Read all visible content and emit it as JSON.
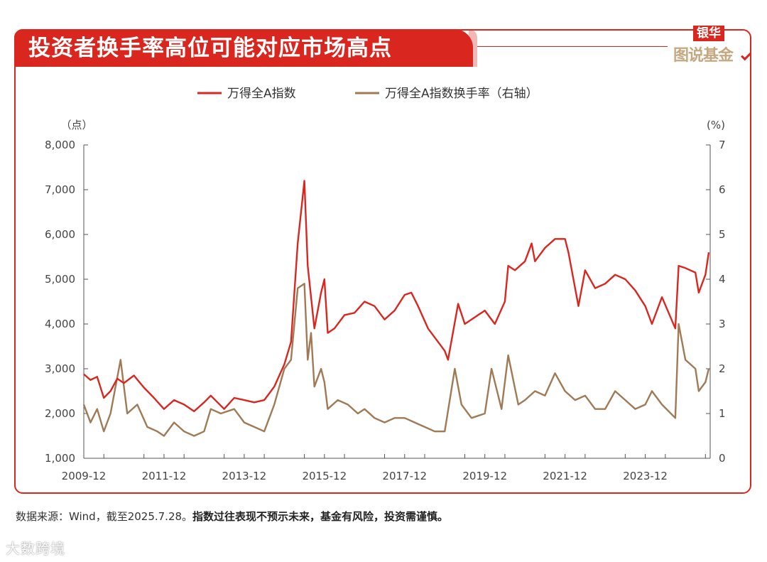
{
  "header": {
    "title": "投资者换手率高位可能对应市场高点",
    "brand_top": "银华",
    "brand_main": "图说基金"
  },
  "footer": {
    "source": "数据来源：Wind，截至2025.7.28。",
    "disclaimer": "指数过往表现不预示未来，基金有风险，投资需谨慎。"
  },
  "watermark": "大数跨境",
  "colors": {
    "accent": "#d9271f",
    "series_index": "#d9271f",
    "series_turnover": "#a07a55",
    "axis": "#555555"
  },
  "chart_data": {
    "type": "line",
    "legend_position": "top-center",
    "grid": false,
    "y_left_unit": "（点）",
    "y_right_unit": "(%)",
    "ylim_left": [
      1000,
      8000
    ],
    "ylim_right": [
      0,
      7
    ],
    "y_left_ticks": [
      "1,000",
      "2,000",
      "3,000",
      "4,000",
      "5,000",
      "6,000",
      "7,000",
      "8,000"
    ],
    "y_right_ticks": [
      "0",
      "1",
      "2",
      "3",
      "4",
      "5",
      "6",
      "7"
    ],
    "x_tick_labels": [
      "2009-12",
      "2011-12",
      "2013-12",
      "2015-12",
      "2017-12",
      "2019-12",
      "2021-12",
      "2023-12"
    ],
    "x_range": [
      "2009-12",
      "2025-07"
    ],
    "series": [
      {
        "name": "万得全A指数",
        "axis": "left",
        "points": [
          [
            "2009-12",
            2880
          ],
          [
            "2010-02",
            2750
          ],
          [
            "2010-04",
            2820
          ],
          [
            "2010-06",
            2350
          ],
          [
            "2010-08",
            2500
          ],
          [
            "2010-10",
            2780
          ],
          [
            "2010-12",
            2680
          ],
          [
            "2011-03",
            2850
          ],
          [
            "2011-06",
            2580
          ],
          [
            "2011-09",
            2350
          ],
          [
            "2011-12",
            2100
          ],
          [
            "2012-03",
            2300
          ],
          [
            "2012-06",
            2200
          ],
          [
            "2012-09",
            2050
          ],
          [
            "2012-12",
            2250
          ],
          [
            "2013-02",
            2400
          ],
          [
            "2013-06",
            2100
          ],
          [
            "2013-09",
            2350
          ],
          [
            "2013-12",
            2300
          ],
          [
            "2014-03",
            2250
          ],
          [
            "2014-06",
            2300
          ],
          [
            "2014-09",
            2600
          ],
          [
            "2014-12",
            3100
          ],
          [
            "2015-02",
            3600
          ],
          [
            "2015-04",
            5800
          ],
          [
            "2015-06",
            7200
          ],
          [
            "2015-07",
            5300
          ],
          [
            "2015-08",
            4600
          ],
          [
            "2015-09",
            3900
          ],
          [
            "2015-11",
            4700
          ],
          [
            "2015-12",
            5000
          ],
          [
            "2016-01",
            3800
          ],
          [
            "2016-03",
            3900
          ],
          [
            "2016-06",
            4200
          ],
          [
            "2016-09",
            4250
          ],
          [
            "2016-12",
            4500
          ],
          [
            "2017-03",
            4400
          ],
          [
            "2017-06",
            4100
          ],
          [
            "2017-09",
            4300
          ],
          [
            "2017-12",
            4650
          ],
          [
            "2018-02",
            4700
          ],
          [
            "2018-04",
            4400
          ],
          [
            "2018-07",
            3900
          ],
          [
            "2018-10",
            3600
          ],
          [
            "2018-12",
            3400
          ],
          [
            "2019-01",
            3200
          ],
          [
            "2019-04",
            4450
          ],
          [
            "2019-06",
            4000
          ],
          [
            "2019-09",
            4150
          ],
          [
            "2019-12",
            4300
          ],
          [
            "2020-03",
            4000
          ],
          [
            "2020-06",
            4500
          ],
          [
            "2020-07",
            5300
          ],
          [
            "2020-09",
            5200
          ],
          [
            "2020-12",
            5400
          ],
          [
            "2021-02",
            5800
          ],
          [
            "2021-03",
            5400
          ],
          [
            "2021-06",
            5700
          ],
          [
            "2021-09",
            5900
          ],
          [
            "2021-12",
            5900
          ],
          [
            "2022-01",
            5600
          ],
          [
            "2022-04",
            4400
          ],
          [
            "2022-06",
            5200
          ],
          [
            "2022-09",
            4800
          ],
          [
            "2022-12",
            4900
          ],
          [
            "2023-03",
            5100
          ],
          [
            "2023-06",
            5000
          ],
          [
            "2023-09",
            4750
          ],
          [
            "2023-12",
            4400
          ],
          [
            "2024-02",
            4000
          ],
          [
            "2024-05",
            4600
          ],
          [
            "2024-09",
            3900
          ],
          [
            "2024-10",
            5300
          ],
          [
            "2024-12",
            5250
          ],
          [
            "2025-03",
            5150
          ],
          [
            "2025-04",
            4700
          ],
          [
            "2025-06",
            5100
          ],
          [
            "2025-07",
            5600
          ]
        ]
      },
      {
        "name": "万得全A指数换手率（右轴）",
        "axis": "right",
        "points": [
          [
            "2009-12",
            1.2
          ],
          [
            "2010-02",
            0.8
          ],
          [
            "2010-04",
            1.1
          ],
          [
            "2010-06",
            0.6
          ],
          [
            "2010-08",
            1.0
          ],
          [
            "2010-11",
            2.2
          ],
          [
            "2011-01",
            1.0
          ],
          [
            "2011-04",
            1.2
          ],
          [
            "2011-07",
            0.7
          ],
          [
            "2011-10",
            0.6
          ],
          [
            "2011-12",
            0.5
          ],
          [
            "2012-03",
            0.8
          ],
          [
            "2012-06",
            0.6
          ],
          [
            "2012-09",
            0.5
          ],
          [
            "2012-12",
            0.6
          ],
          [
            "2013-02",
            1.1
          ],
          [
            "2013-05",
            1.0
          ],
          [
            "2013-09",
            1.1
          ],
          [
            "2013-12",
            0.8
          ],
          [
            "2014-03",
            0.7
          ],
          [
            "2014-06",
            0.6
          ],
          [
            "2014-09",
            1.2
          ],
          [
            "2014-12",
            2.0
          ],
          [
            "2015-02",
            2.2
          ],
          [
            "2015-04",
            3.8
          ],
          [
            "2015-06",
            3.9
          ],
          [
            "2015-07",
            2.2
          ],
          [
            "2015-08",
            2.8
          ],
          [
            "2015-09",
            1.6
          ],
          [
            "2015-11",
            2.0
          ],
          [
            "2015-12",
            1.7
          ],
          [
            "2016-01",
            1.1
          ],
          [
            "2016-04",
            1.3
          ],
          [
            "2016-07",
            1.2
          ],
          [
            "2016-10",
            1.0
          ],
          [
            "2016-12",
            1.1
          ],
          [
            "2017-03",
            0.9
          ],
          [
            "2017-06",
            0.8
          ],
          [
            "2017-09",
            0.9
          ],
          [
            "2017-12",
            0.9
          ],
          [
            "2018-03",
            0.8
          ],
          [
            "2018-06",
            0.7
          ],
          [
            "2018-09",
            0.6
          ],
          [
            "2018-12",
            0.6
          ],
          [
            "2019-03",
            2.0
          ],
          [
            "2019-05",
            1.2
          ],
          [
            "2019-08",
            0.9
          ],
          [
            "2019-12",
            1.0
          ],
          [
            "2020-02",
            2.0
          ],
          [
            "2020-05",
            1.1
          ],
          [
            "2020-07",
            2.3
          ],
          [
            "2020-10",
            1.2
          ],
          [
            "2020-12",
            1.3
          ],
          [
            "2021-03",
            1.5
          ],
          [
            "2021-06",
            1.4
          ],
          [
            "2021-09",
            1.9
          ],
          [
            "2021-12",
            1.5
          ],
          [
            "2022-03",
            1.3
          ],
          [
            "2022-06",
            1.4
          ],
          [
            "2022-09",
            1.1
          ],
          [
            "2022-12",
            1.1
          ],
          [
            "2023-03",
            1.5
          ],
          [
            "2023-06",
            1.3
          ],
          [
            "2023-09",
            1.1
          ],
          [
            "2023-12",
            1.2
          ],
          [
            "2024-02",
            1.5
          ],
          [
            "2024-05",
            1.2
          ],
          [
            "2024-09",
            0.9
          ],
          [
            "2024-10",
            3.0
          ],
          [
            "2024-12",
            2.2
          ],
          [
            "2025-03",
            2.0
          ],
          [
            "2025-04",
            1.5
          ],
          [
            "2025-06",
            1.7
          ],
          [
            "2025-07",
            2.0
          ]
        ]
      }
    ]
  }
}
